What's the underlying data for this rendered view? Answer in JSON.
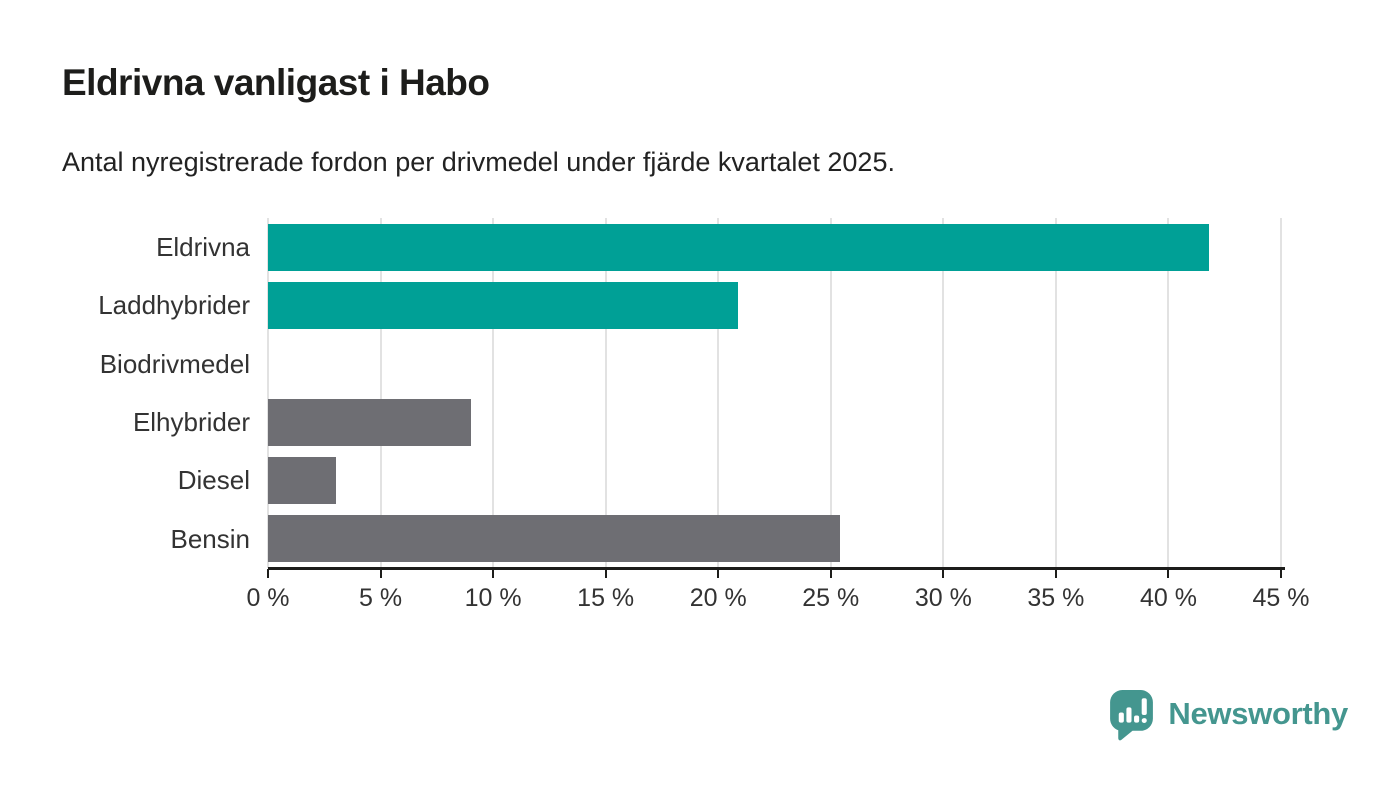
{
  "header": {
    "title": "Eldrivna vanligast i Habo",
    "subtitle": "Antal nyregistrerade fordon per drivmedel under fjärde kvartalet 2025."
  },
  "chart_data": {
    "type": "bar",
    "orientation": "horizontal",
    "title": "Eldrivna vanligast i Habo",
    "subtitle": "Antal nyregistrerade fordon per drivmedel under fjärde kvartalet 2025.",
    "categories": [
      "Eldrivna",
      "Laddhybrider",
      "Biodrivmedel",
      "Elhybrider",
      "Diesel",
      "Bensin"
    ],
    "values": [
      41.8,
      20.9,
      0,
      9.0,
      3.0,
      25.4
    ],
    "unit": "%",
    "xlabel": "",
    "ylabel": "",
    "xlim": [
      0,
      45
    ],
    "xticks": [
      0,
      5,
      10,
      15,
      20,
      25,
      30,
      35,
      40,
      45
    ],
    "xtick_labels": [
      "0 %",
      "5 %",
      "10 %",
      "15 %",
      "20 %",
      "25 %",
      "30 %",
      "35 %",
      "40 %",
      "45 %"
    ],
    "grid": true,
    "legend": false,
    "bar_colors": [
      "#00A096",
      "#00A096",
      "#6E6E73",
      "#6E6E73",
      "#6E6E73",
      "#6E6E73"
    ]
  },
  "colors": {
    "teal": "#00A096",
    "gray": "#6E6E73",
    "brand": "#44968F",
    "axis": "#1D1D1B",
    "grid": "#E2E2E2",
    "label": "#333333"
  },
  "footer": {
    "brand": "Newsworthy"
  }
}
